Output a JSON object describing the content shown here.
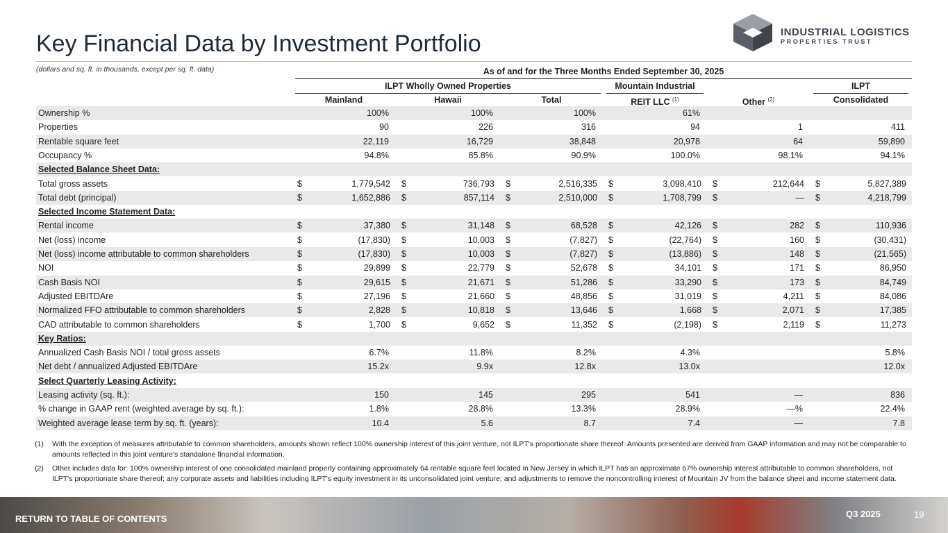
{
  "header": {
    "title": "Key Financial Data by Investment Portfolio",
    "subtitle": "(dollars and sq. ft. in thousands, except per sq. ft. data)",
    "logo": {
      "line1": "INDUSTRIAL LOGISTICS",
      "line2": "PROPERTIES TRUST"
    }
  },
  "table": {
    "period": "As of and for the Three Months Ended September 30, 2025",
    "group": "ILPT Wholly Owned Properties",
    "currency": "$",
    "columns": [
      {
        "label": "Mainland"
      },
      {
        "label": "Hawaii"
      },
      {
        "label": "Total"
      },
      {
        "top": "Mountain Industrial",
        "label": "REIT LLC",
        "note": "(1)"
      },
      {
        "label": "Other",
        "note": "(2)"
      },
      {
        "top": "ILPT",
        "label": "Consolidated"
      }
    ],
    "rows": [
      {
        "label": "Ownership %",
        "values": [
          "100%",
          "100%",
          "100%",
          "61%",
          null,
          null
        ]
      },
      {
        "label": "Properties",
        "values": [
          "90",
          "226",
          "316",
          "94",
          "1",
          "411"
        ]
      },
      {
        "label": "Rentable square feet",
        "values": [
          "22,119",
          "16,729",
          "38,848",
          "20,978",
          "64",
          "59,890"
        ]
      },
      {
        "label": "Occupancy %",
        "values": [
          "94.8%",
          "85.8%",
          "90.9%",
          "100.0%",
          "98.1%",
          "94.1%"
        ]
      },
      {
        "section": "Selected Balance Sheet Data:"
      },
      {
        "label": "Total gross assets",
        "currency": true,
        "values": [
          "1,779,542",
          "736,793",
          "2,516,335",
          "3,098,410",
          "212,644",
          "5,827,389"
        ]
      },
      {
        "label": "Total debt (principal)",
        "currency": true,
        "values": [
          "1,652,886",
          "857,114",
          "2,510,000",
          "1,708,799",
          "—",
          "4,218,799"
        ]
      },
      {
        "section": "Selected Income Statement Data:"
      },
      {
        "label": "Rental income",
        "currency": true,
        "values": [
          "37,380",
          "31,148",
          "68,528",
          "42,126",
          "282",
          "110,936"
        ]
      },
      {
        "label": "Net (loss) income",
        "currency": true,
        "values": [
          "(17,830)",
          "10,003",
          "(7,827)",
          "(22,764)",
          "160",
          "(30,431)"
        ]
      },
      {
        "label": "Net (loss) income attributable to common shareholders",
        "currency": true,
        "values": [
          "(17,830)",
          "10,003",
          "(7,827)",
          "(13,886)",
          "148",
          "(21,565)"
        ]
      },
      {
        "label": "NOI",
        "currency": true,
        "values": [
          "29,899",
          "22,779",
          "52,678",
          "34,101",
          "171",
          "86,950"
        ]
      },
      {
        "label": "Cash Basis NOI",
        "currency": true,
        "values": [
          "29,615",
          "21,671",
          "51,286",
          "33,290",
          "173",
          "84,749"
        ]
      },
      {
        "label": "Adjusted EBITDAre",
        "currency": true,
        "values": [
          "27,196",
          "21,660",
          "48,856",
          "31,019",
          "4,211",
          "84,086"
        ]
      },
      {
        "label": "Normalized FFO attributable to common shareholders",
        "currency": true,
        "values": [
          "2,828",
          "10,818",
          "13,646",
          "1,668",
          "2,071",
          "17,385"
        ]
      },
      {
        "label": "CAD attributable to common shareholders",
        "currency": true,
        "values": [
          "1,700",
          "9,652",
          "11,352",
          "(2,198)",
          "2,119",
          "11,273"
        ]
      },
      {
        "section": "Key Ratios:"
      },
      {
        "label": "Annualized Cash Basis NOI / total gross assets",
        "values": [
          "6.7%",
          "11.8%",
          "8.2%",
          "4.3%",
          null,
          "5.8%"
        ]
      },
      {
        "label": "Net debt / annualized Adjusted EBITDAre",
        "values": [
          "15.2x",
          "9.9x",
          "12.8x",
          "13.0x",
          null,
          "12.0x"
        ]
      },
      {
        "section": "Select Quarterly Leasing Activity:"
      },
      {
        "label": "Leasing activity (sq. ft.):",
        "values": [
          "150",
          "145",
          "295",
          "541",
          "—",
          "836"
        ]
      },
      {
        "label": "% change in GAAP rent (weighted average by sq. ft.):",
        "values": [
          "1.8%",
          "28.8%",
          "13.3%",
          "28.9%",
          "—%",
          "22.4%"
        ]
      },
      {
        "label": "Weighted average lease term by sq. ft. (years):",
        "values": [
          "10.4",
          "5.6",
          "8.7",
          "7.4",
          "—",
          "7.8"
        ]
      }
    ]
  },
  "footnotes": [
    {
      "marker": "(1)",
      "text": "With the exception of measures attributable to common shareholders, amounts shown reflect 100% ownership interest of this joint venture, not ILPT's proportionate share thereof. Amounts presented are derived from GAAP information and may not be comparable to amounts reflected in this joint venture's standalone financial information."
    },
    {
      "marker": "(2)",
      "text": "Other includes data for: 100% ownership interest of one consolidated mainland property containing approximately 64 rentable square feet located in New Jersey in which ILPT has an approximate 67% ownership interest attributable to common shareholders, not ILPT's proportionate share thereof; any corporate assets and liabilities including ILPT's equity investment in its unconsolidated joint venture; and adjustments to remove the noncontrolling interest of Mountain JV from the balance sheet and income statement data."
    }
  ],
  "footer": {
    "link": "RETURN TO TABLE OF CONTENTS",
    "period": "Q3 2025",
    "page": "19"
  }
}
